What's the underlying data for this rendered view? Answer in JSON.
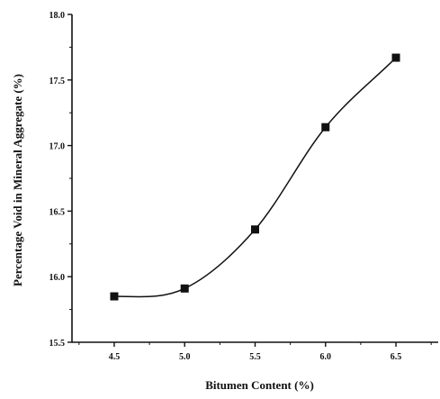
{
  "chart_data": {
    "type": "line",
    "title": "",
    "xlabel": "Bitumen Content (%)",
    "ylabel": "Percentage Void in Mineral Aggregate (%)",
    "xlim": [
      4.2,
      6.8
    ],
    "ylim": [
      15.5,
      18.0
    ],
    "x_ticks": [
      "4.5",
      "5.0",
      "5.5",
      "6.0",
      "6.5"
    ],
    "y_ticks": [
      "15.5",
      "16.0",
      "16.5",
      "17.0",
      "17.5",
      "18.0"
    ],
    "x": [
      4.5,
      5.0,
      5.5,
      6.0,
      6.5
    ],
    "series": [
      {
        "values": [
          15.85,
          15.91,
          16.36,
          17.14,
          17.67
        ]
      }
    ],
    "smoothed_line": true,
    "markers": "square",
    "grid": false,
    "legend": "none",
    "colors": {
      "line": "#111111",
      "marker": "#111111",
      "axis": "#111111"
    }
  }
}
